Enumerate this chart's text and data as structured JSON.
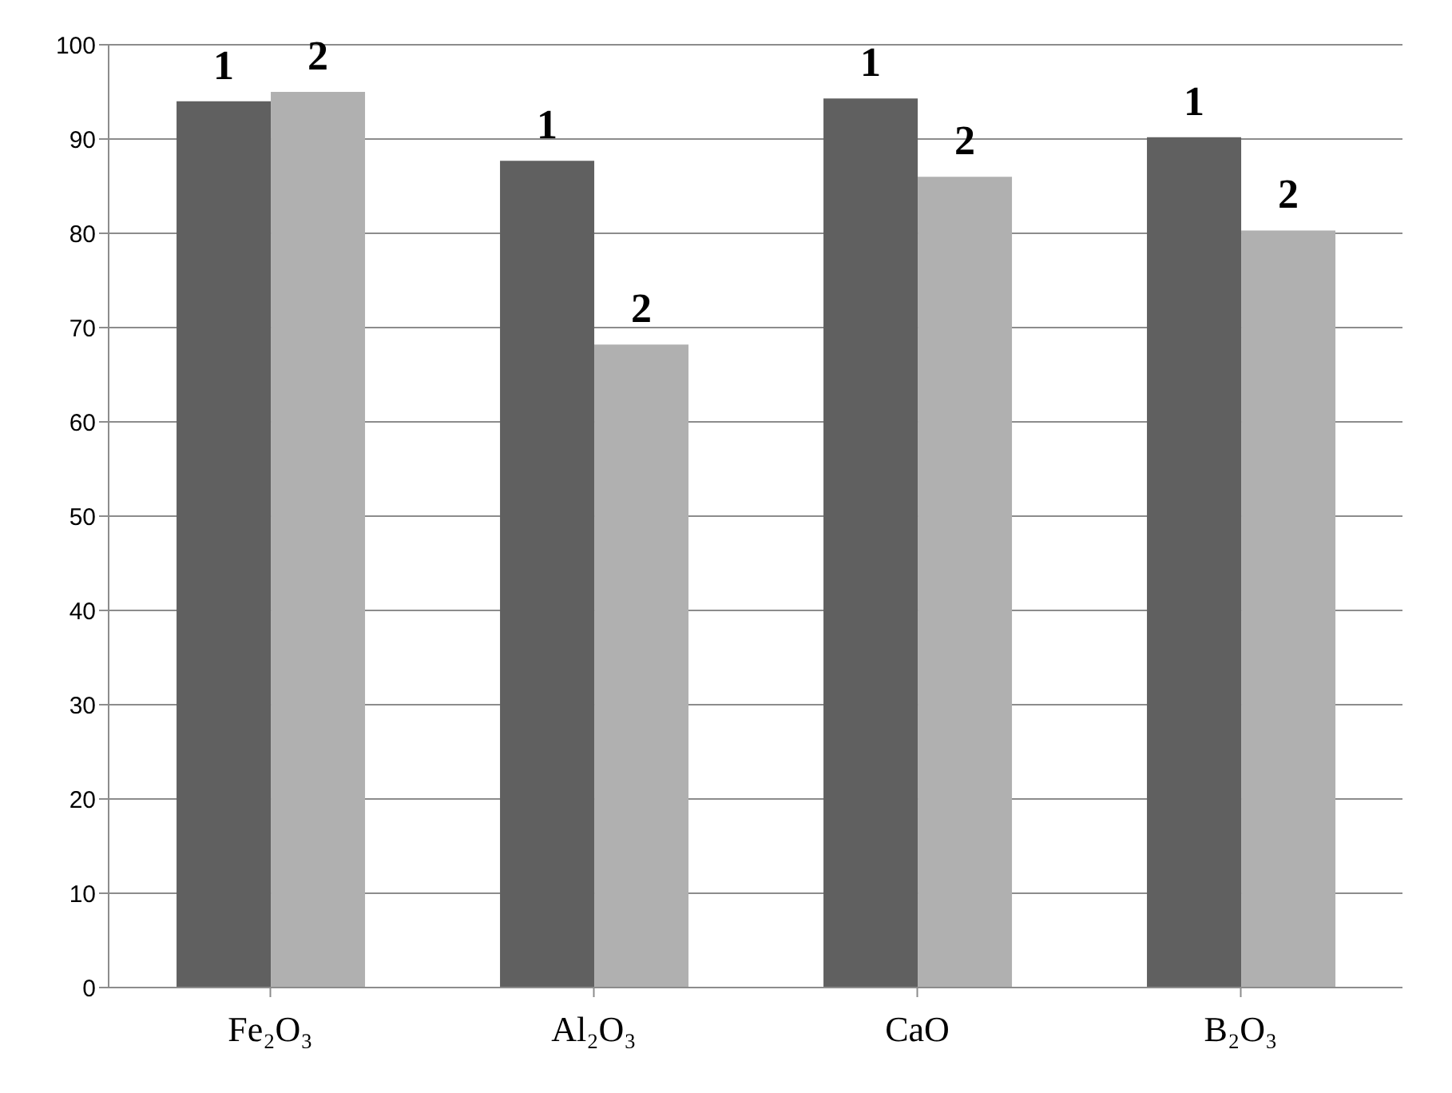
{
  "chart_data": {
    "type": "bar",
    "categories": [
      "Fe₂O₃",
      "Al₂O₃",
      "CaO",
      "B₂O₃"
    ],
    "series": [
      {
        "name": "1",
        "color": "#606060",
        "values": [
          94,
          87.7,
          94.3,
          90.2
        ]
      },
      {
        "name": "2",
        "color": "#b0b0b0",
        "values": [
          95,
          68.2,
          86,
          80.3
        ]
      }
    ],
    "ylim": [
      0,
      100
    ],
    "yticks": [
      0,
      10,
      20,
      30,
      40,
      50,
      60,
      70,
      80,
      90,
      100
    ],
    "grid": "y",
    "legend": false
  }
}
